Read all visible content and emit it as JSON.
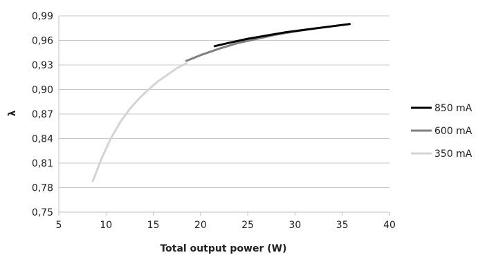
{
  "chart_data": {
    "type": "line",
    "xlabel": "Total output power (W)",
    "ylabel": "λ",
    "xlim": [
      5,
      40
    ],
    "ylim": [
      0.75,
      0.99
    ],
    "x_ticks": [
      "5",
      "10",
      "15",
      "20",
      "25",
      "30",
      "35",
      "40"
    ],
    "y_ticks": [
      "0,75",
      "0,78",
      "0,81",
      "0,84",
      "0,87",
      "0,90",
      "0,93",
      "0,96",
      "0,99"
    ],
    "grid": "horizontal",
    "legend_position": "right",
    "series": [
      {
        "name": "850 mA",
        "color": "#000000",
        "points": [
          [
            21.5,
            0.953
          ],
          [
            23,
            0.957
          ],
          [
            25,
            0.962
          ],
          [
            27,
            0.966
          ],
          [
            29,
            0.97
          ],
          [
            31,
            0.973
          ],
          [
            33,
            0.976
          ],
          [
            35.8,
            0.98
          ]
        ]
      },
      {
        "name": "600 mA",
        "color": "#7f7f7f",
        "points": [
          [
            18.5,
            0.935
          ],
          [
            20,
            0.942
          ],
          [
            22,
            0.95
          ],
          [
            24,
            0.957
          ],
          [
            26,
            0.962
          ],
          [
            28,
            0.967
          ],
          [
            30,
            0.971
          ],
          [
            32.3,
            0.975
          ]
        ]
      },
      {
        "name": "350 mA",
        "color": "#d4d4d4",
        "points": [
          [
            8.6,
            0.788
          ],
          [
            9.5,
            0.815
          ],
          [
            10.5,
            0.84
          ],
          [
            11.5,
            0.86
          ],
          [
            12.5,
            0.876
          ],
          [
            13.5,
            0.889
          ],
          [
            14.5,
            0.9
          ],
          [
            15.5,
            0.91
          ],
          [
            16.5,
            0.918
          ],
          [
            17.5,
            0.926
          ],
          [
            18.5,
            0.932
          ]
        ]
      }
    ]
  }
}
